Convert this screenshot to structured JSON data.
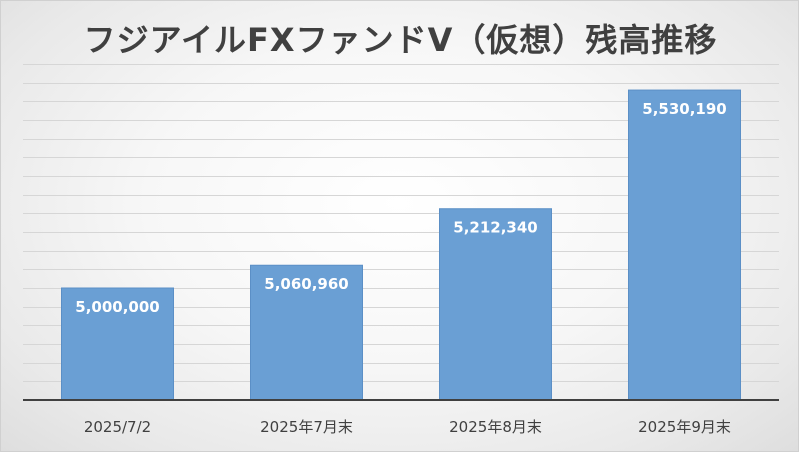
{
  "chart_data": {
    "type": "bar",
    "title": "フジアイルFXファンドⅤ（仮想）残高推移",
    "categories": [
      "2025/7/2",
      "2025年7月末",
      "2025年8月末",
      "2025年9月末"
    ],
    "values": [
      5000000,
      5060960,
      5212340,
      5530190
    ],
    "data_labels": [
      "5,000,000",
      "5,060,960",
      "5,212,340",
      "5,530,190"
    ],
    "ylim": [
      4700000,
      5600000
    ],
    "gridline_step": 50000,
    "grid": true,
    "y_axis_labels_shown": false,
    "legend": "none",
    "colors": {
      "bar": "#6a9fd4",
      "bar_edge": "#5b8fc6",
      "grid": "#d6d6d6",
      "axis": "#404040",
      "title": "#404040"
    }
  }
}
